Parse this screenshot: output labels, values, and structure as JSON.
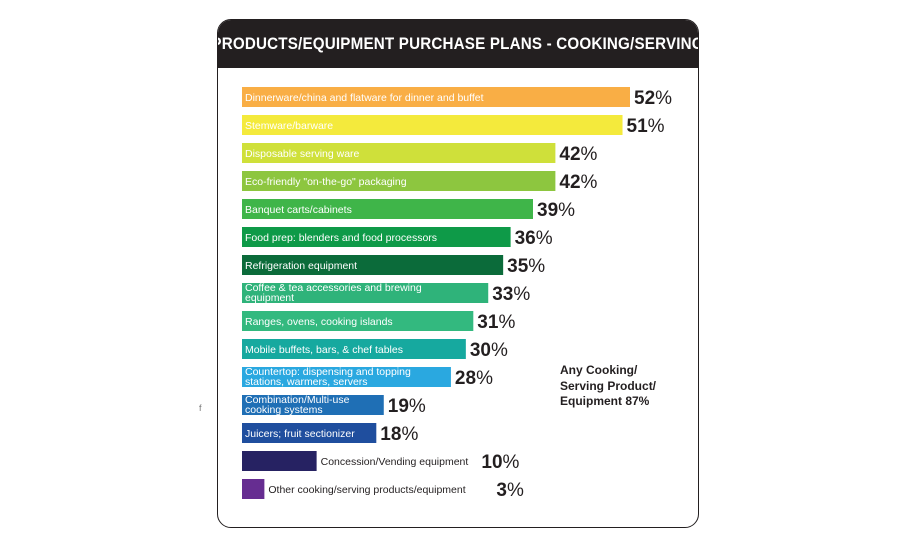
{
  "chart_data": {
    "type": "bar",
    "orientation": "horizontal",
    "title": "PRODUCTS/EQUIPMENT PURCHASE PLANS - COOKING/SERVING",
    "xlabel": "",
    "ylabel": "",
    "unit": "%",
    "xlim": [
      0,
      52
    ],
    "grid": false,
    "categories": [
      "Dinnerware/china and flatware for dinner and buffet",
      "Stemware/barware",
      "Disposable serving ware",
      "Eco-friendly \"on-the-go\" packaging",
      "Banquet carts/cabinets",
      "Food prep: blenders and food processors",
      "Refrigeration equipment",
      "Coffee & tea accessories and brewing equipment",
      "Ranges, ovens, cooking islands",
      "Mobile buffets, bars, & chef tables",
      "Countertop: dispensing and topping stations, warmers, servers",
      "Combination/Multi-use cooking systems",
      "Juicers; fruit sectionizer",
      "Concession/Vending equipment",
      "Other cooking/serving products/equipment"
    ],
    "label_lines": [
      [
        "Dinnerware/china and flatware for dinner and buffet"
      ],
      [
        "Stemware/barware"
      ],
      [
        "Disposable serving ware"
      ],
      [
        "Eco-friendly \"on-the-go\" packaging"
      ],
      [
        "Banquet carts/cabinets"
      ],
      [
        "Food prep: blenders and food processors"
      ],
      [
        "Refrigeration equipment"
      ],
      [
        "Coffee & tea accessories and brewing",
        "equipment"
      ],
      [
        "Ranges, ovens, cooking islands"
      ],
      [
        "Mobile buffets, bars, & chef tables"
      ],
      [
        "Countertop: dispensing and topping",
        "stations, warmers, servers"
      ],
      [
        "Combination/Multi-use",
        "cooking systems"
      ],
      [
        "Juicers; fruit sectionizer"
      ],
      [
        "Concession/Vending equipment"
      ],
      [
        "Other cooking/serving products/equipment"
      ]
    ],
    "values": [
      52,
      51,
      42,
      42,
      39,
      36,
      35,
      33,
      31,
      30,
      28,
      19,
      18,
      10,
      3
    ],
    "colors": [
      "#f9ae45",
      "#f4ea3c",
      "#cfe03a",
      "#8dc63f",
      "#3fb549",
      "#0e9a48",
      "#0b6b3a",
      "#2fb37a",
      "#33b97f",
      "#16a99f",
      "#2aa8e0",
      "#1f6fb5",
      "#1f4e9e",
      "#262262",
      "#662d91"
    ],
    "label_outside": [
      false,
      false,
      false,
      false,
      false,
      false,
      false,
      false,
      false,
      false,
      false,
      false,
      false,
      true,
      true
    ],
    "annotation": [
      "Any Cooking/",
      "Serving Product/",
      "Equipment 87%"
    ]
  },
  "stray_mark": "f"
}
